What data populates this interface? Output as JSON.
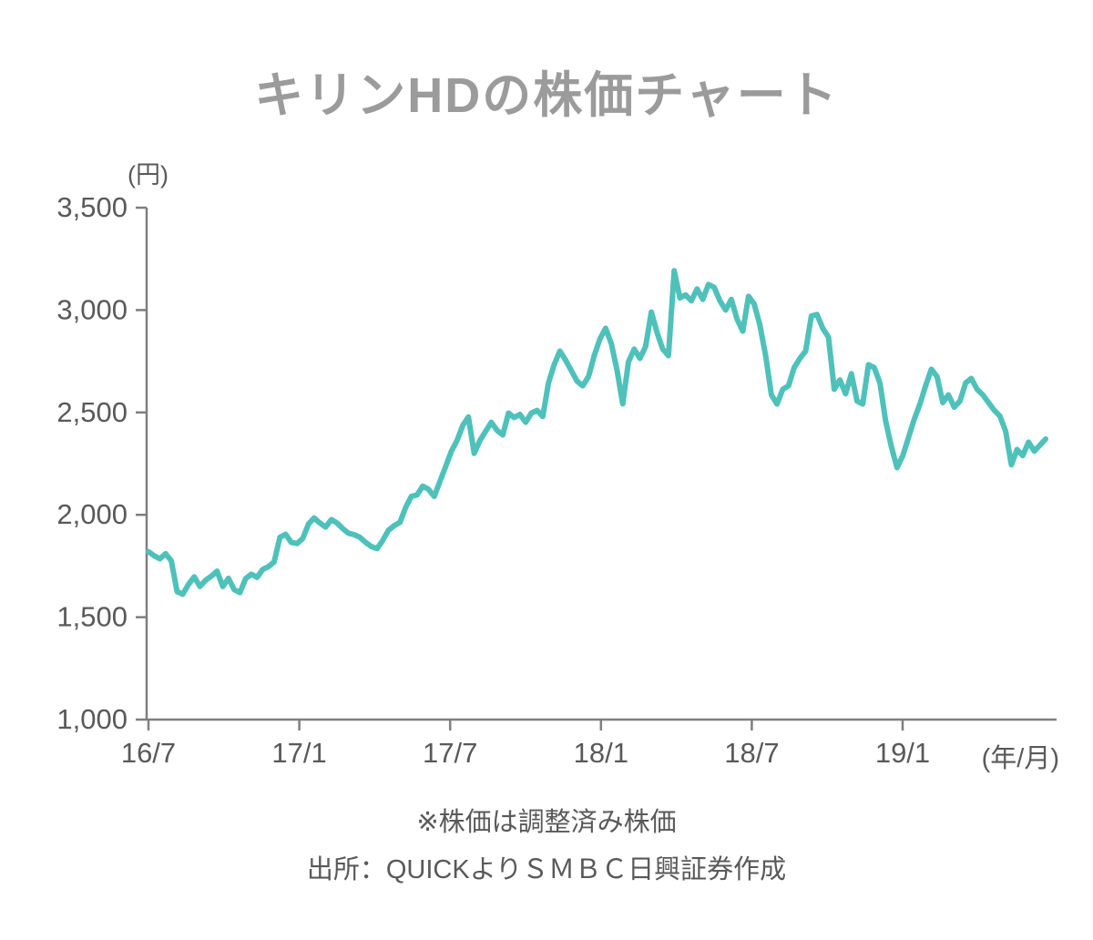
{
  "title": "キリンHDの株価チャート",
  "notes": {
    "footnote": "※株価は調整済み株価",
    "source": "出所：QUICKよりＳＭＢＣ日興証券作成"
  },
  "chart_data": {
    "type": "line",
    "title": "キリンHDの株価チャート",
    "unit_y": "(円)",
    "unit_x": "(年/月)",
    "ylabel": "株価(円)",
    "xlabel": "年/月",
    "ylim": [
      1000,
      3500
    ],
    "y_ticks": [
      3500,
      3000,
      2500,
      2000,
      1500,
      1000
    ],
    "y_tick_labels": [
      "3,500",
      "3,000",
      "2,500",
      "2,000",
      "1,500",
      "1,000"
    ],
    "x_tick_labels": [
      "16/7",
      "17/1",
      "17/7",
      "18/1",
      "18/7",
      "19/1"
    ],
    "x_tick_months": [
      0,
      6,
      12,
      18,
      24,
      30
    ],
    "grid": false,
    "legend": "none",
    "line_color": "#4ec1ba",
    "axis_color": "#7f7f7f",
    "label_color": "#595959",
    "title_color": "#9b9b9b",
    "series": [
      {
        "name": "株価",
        "values": [
          1820,
          1800,
          1785,
          1810,
          1775,
          1625,
          1612,
          1660,
          1697,
          1650,
          1680,
          1700,
          1725,
          1650,
          1690,
          1635,
          1620,
          1688,
          1710,
          1695,
          1733,
          1747,
          1770,
          1890,
          1905,
          1865,
          1860,
          1885,
          1955,
          1985,
          1960,
          1940,
          1977,
          1960,
          1933,
          1910,
          1903,
          1890,
          1865,
          1845,
          1835,
          1875,
          1925,
          1947,
          1963,
          2035,
          2090,
          2097,
          2140,
          2125,
          2090,
          2163,
          2235,
          2310,
          2363,
          2437,
          2478,
          2300,
          2363,
          2408,
          2452,
          2413,
          2390,
          2497,
          2475,
          2490,
          2452,
          2497,
          2510,
          2480,
          2644,
          2733,
          2800,
          2755,
          2704,
          2653,
          2630,
          2675,
          2777,
          2858,
          2911,
          2836,
          2704,
          2542,
          2747,
          2809,
          2764,
          2822,
          2990,
          2890,
          2809,
          2777,
          3192,
          3059,
          3074,
          3045,
          3103,
          3052,
          3125,
          3111,
          3045,
          3000,
          3052,
          2956,
          2897,
          3067,
          3030,
          2926,
          2777,
          2586,
          2541,
          2613,
          2630,
          2719,
          2764,
          2800,
          2971,
          2978,
          2911,
          2867,
          2613,
          2659,
          2591,
          2689,
          2555,
          2541,
          2733,
          2719,
          2644,
          2459,
          2333,
          2230,
          2289,
          2377,
          2466,
          2541,
          2630,
          2711,
          2675,
          2548,
          2586,
          2526,
          2555,
          2644,
          2666,
          2613,
          2586,
          2548,
          2511,
          2482,
          2408,
          2244,
          2319,
          2289,
          2355,
          2311,
          2340,
          2370
        ]
      }
    ]
  }
}
